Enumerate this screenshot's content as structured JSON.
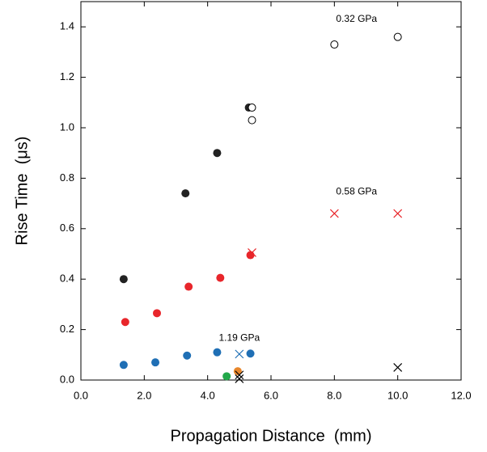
{
  "chart_data": {
    "type": "scatter",
    "x_label": "Propagation Distance  (mm)",
    "y_label": "Rise Time  (μs)",
    "annotations": [
      "0.32 GPa",
      "0.58 GPa",
      "1.19 GPa"
    ],
    "xlim": [
      0,
      12
    ],
    "ylim": [
      0,
      1.5
    ],
    "xticks": [
      {
        "value": 0,
        "label": "0.0"
      },
      {
        "value": 2,
        "label": "2.0"
      },
      {
        "value": 4,
        "label": "4.0"
      },
      {
        "value": 6,
        "label": "6.0"
      },
      {
        "value": 8,
        "label": "8.0"
      },
      {
        "value": 10,
        "label": "10.0"
      },
      {
        "value": 12,
        "label": "12.0"
      }
    ],
    "yticks": [
      {
        "value": 0,
        "label": "0.0"
      },
      0.2,
      0.4,
      0.6,
      0.8,
      {
        "value": 1,
        "label": "1.0"
      },
      1.2,
      1.4
    ],
    "series": [
      {
        "color": "#222222",
        "marker": "filled-circle",
        "x": [
          1.35,
          3.3,
          4.3,
          5.3
        ],
        "values": [
          0.4,
          0.74,
          0.9,
          1.08
        ]
      },
      {
        "color": "#000000",
        "marker": "open-circle",
        "x": [
          5.4,
          5.4,
          8.0,
          10.0
        ],
        "values": [
          1.08,
          1.03,
          1.33,
          1.36
        ]
      },
      {
        "color": "#e8262b",
        "marker": "filled-circle",
        "x": [
          1.4,
          2.4,
          3.4,
          4.4,
          5.35
        ],
        "values": [
          0.23,
          0.265,
          0.37,
          0.405,
          0.495
        ]
      },
      {
        "color": "#e8262b",
        "marker": "x",
        "x": [
          5.4,
          8.0,
          10.0
        ],
        "values": [
          0.505,
          0.66,
          0.66
        ]
      },
      {
        "color": "#1f6fb5",
        "marker": "filled-circle",
        "x": [
          1.35,
          2.35,
          3.35,
          4.3,
          5.35
        ],
        "values": [
          0.06,
          0.07,
          0.097,
          0.11,
          0.105
        ]
      },
      {
        "color": "#1f6fb5",
        "marker": "x",
        "x": [
          5.0
        ],
        "values": [
          0.103
        ]
      },
      {
        "color": "#22a84a",
        "marker": "filled-circle",
        "x": [
          4.6
        ],
        "values": [
          0.015
        ]
      },
      {
        "color": "#e8862b",
        "marker": "filled-circle",
        "x": [
          4.95
        ],
        "values": [
          0.035
        ]
      },
      {
        "color": "#000000",
        "marker": "x",
        "x": [
          5.0,
          5.0,
          10.0
        ],
        "values": [
          0.02,
          0.005,
          0.05
        ]
      }
    ]
  }
}
